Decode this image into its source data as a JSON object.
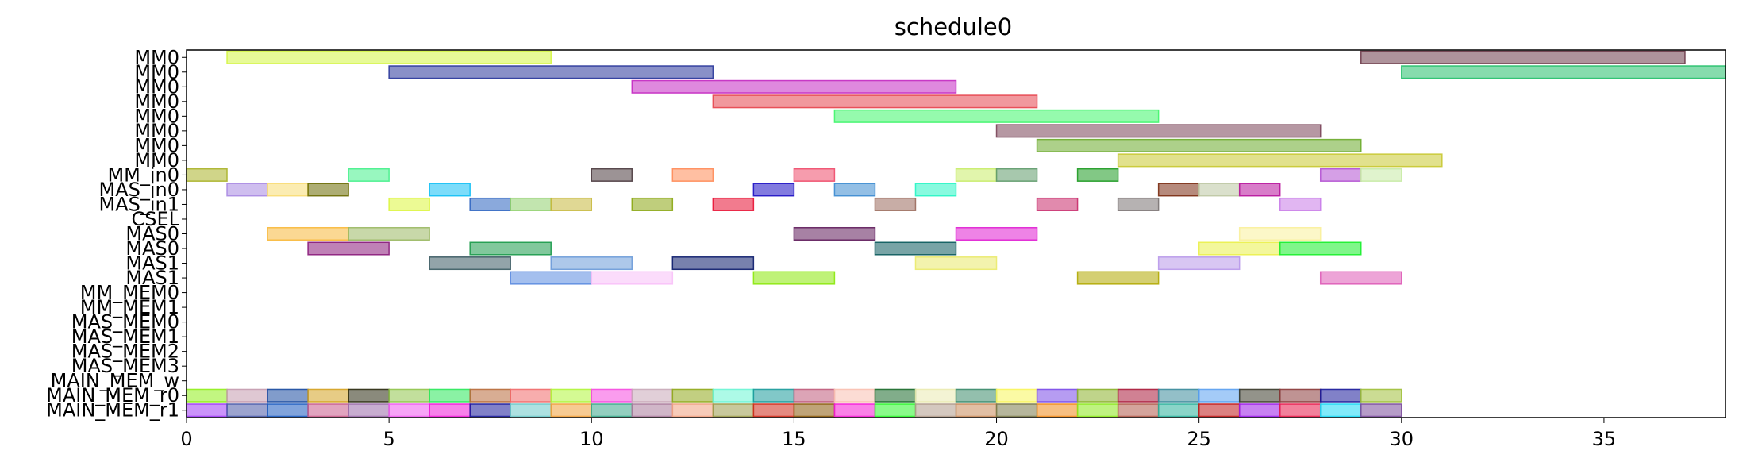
{
  "chart_data": {
    "type": "gantt",
    "title": "schedule0",
    "xlim": [
      0,
      38
    ],
    "x_ticks": [
      "0",
      "5",
      "10",
      "15",
      "20",
      "25",
      "30",
      "35"
    ],
    "x_tick_values": [
      0,
      5,
      10,
      15,
      20,
      25,
      30,
      35
    ],
    "rows": [
      "MM0",
      "MM0",
      "MM0",
      "MM0",
      "MM0",
      "MM0",
      "MM0",
      "MM0",
      "MM_in0",
      "MAS_in0",
      "MAS_in1",
      "CSEL",
      "MAS0",
      "MAS0",
      "MAS1",
      "MAS1",
      "MM_MEM0",
      "MM_MEM1",
      "MAS_MEM0",
      "MAS_MEM1",
      "MAS_MEM2",
      "MAS_MEM3",
      "MAIN_MEM_w",
      "MAIN_MEM_r0",
      "MAIN_MEM_r1"
    ],
    "tasks": [
      {
        "row": 0,
        "start": 1,
        "end": 9,
        "color": "#d4f542"
      },
      {
        "row": 0,
        "start": 29,
        "end": 37,
        "color": "#6b3a48"
      },
      {
        "row": 1,
        "start": 5,
        "end": 13,
        "color": "#28359a"
      },
      {
        "row": 1,
        "start": 30,
        "end": 38,
        "color": "#22c06a"
      },
      {
        "row": 2,
        "start": 11,
        "end": 19,
        "color": "#c428c2"
      },
      {
        "row": 3,
        "start": 13,
        "end": 21,
        "color": "#e6444d"
      },
      {
        "row": 4,
        "start": 16,
        "end": 24,
        "color": "#3ef56a"
      },
      {
        "row": 5,
        "start": 20,
        "end": 28,
        "color": "#7a4458"
      },
      {
        "row": 6,
        "start": 21,
        "end": 29,
        "color": "#6aaa2a"
      },
      {
        "row": 7,
        "start": 23,
        "end": 31,
        "color": "#c8c830"
      },
      {
        "row": 8,
        "start": 0,
        "end": 1,
        "color": "#aab228"
      },
      {
        "row": 8,
        "start": 4,
        "end": 5,
        "color": "#44f08a"
      },
      {
        "row": 8,
        "start": 10,
        "end": 11,
        "color": "#4a3a3e"
      },
      {
        "row": 8,
        "start": 12,
        "end": 13,
        "color": "#ff8a56"
      },
      {
        "row": 8,
        "start": 15,
        "end": 16,
        "color": "#ee4a6a"
      },
      {
        "row": 8,
        "start": 19,
        "end": 20,
        "color": "#c8ec68"
      },
      {
        "row": 8,
        "start": 20,
        "end": 21,
        "color": "#5e9a6a"
      },
      {
        "row": 8,
        "start": 22,
        "end": 23,
        "color": "#1c9a20"
      },
      {
        "row": 8,
        "start": 28,
        "end": 29,
        "color": "#b250d2"
      },
      {
        "row": 8,
        "start": 29,
        "end": 30,
        "color": "#c6eaa4"
      },
      {
        "row": 9,
        "start": 1,
        "end": 2,
        "color": "#a888e2"
      },
      {
        "row": 9,
        "start": 2,
        "end": 3,
        "color": "#f8dc72"
      },
      {
        "row": 9,
        "start": 3,
        "end": 4,
        "color": "#6a6a00"
      },
      {
        "row": 9,
        "start": 6,
        "end": 7,
        "color": "#10bff5"
      },
      {
        "row": 9,
        "start": 14,
        "end": 15,
        "color": "#1c0ec4"
      },
      {
        "row": 9,
        "start": 16,
        "end": 17,
        "color": "#3a8ad0"
      },
      {
        "row": 9,
        "start": 18,
        "end": 19,
        "color": "#26f5c4"
      },
      {
        "row": 9,
        "start": 24,
        "end": 25,
        "color": "#7a2a10"
      },
      {
        "row": 9,
        "start": 25,
        "end": 26,
        "color": "#bcc6a2"
      },
      {
        "row": 9,
        "start": 26,
        "end": 27,
        "color": "#b8129c"
      },
      {
        "row": 10,
        "start": 5,
        "end": 6,
        "color": "#dcf53c"
      },
      {
        "row": 10,
        "start": 7,
        "end": 8,
        "color": "#2a62c0"
      },
      {
        "row": 10,
        "start": 8,
        "end": 9,
        "color": "#90d06e"
      },
      {
        "row": 10,
        "start": 9,
        "end": 10,
        "color": "#c6b83c"
      },
      {
        "row": 10,
        "start": 11,
        "end": 12,
        "color": "#8aa610"
      },
      {
        "row": 10,
        "start": 13,
        "end": 14,
        "color": "#e80e32"
      },
      {
        "row": 10,
        "start": 17,
        "end": 18,
        "color": "#9a6a5c"
      },
      {
        "row": 10,
        "start": 21,
        "end": 22,
        "color": "#c82a6a"
      },
      {
        "row": 10,
        "start": 23,
        "end": 24,
        "color": "#7a7272"
      },
      {
        "row": 10,
        "start": 27,
        "end": 28,
        "color": "#c87ae8"
      },
      {
        "row": 12,
        "start": 2,
        "end": 4,
        "color": "#f8b83a"
      },
      {
        "row": 12,
        "start": 4,
        "end": 6,
        "color": "#9ab862"
      },
      {
        "row": 12,
        "start": 15,
        "end": 17,
        "color": "#5e1a5a"
      },
      {
        "row": 12,
        "start": 19,
        "end": 21,
        "color": "#e01ed2"
      },
      {
        "row": 12,
        "start": 26,
        "end": 28,
        "color": "#faf09a"
      },
      {
        "row": 13,
        "start": 3,
        "end": 5,
        "color": "#8a1a7a"
      },
      {
        "row": 13,
        "start": 7,
        "end": 9,
        "color": "#1a9a4a"
      },
      {
        "row": 13,
        "start": 17,
        "end": 19,
        "color": "#0a5a5c"
      },
      {
        "row": 13,
        "start": 25,
        "end": 27,
        "color": "#eaf04a"
      },
      {
        "row": 13,
        "start": 27,
        "end": 29,
        "color": "#16ee2a"
      },
      {
        "row": 14,
        "start": 6,
        "end": 8,
        "color": "#3a5a62"
      },
      {
        "row": 14,
        "start": 9,
        "end": 11,
        "color": "#6a9ad8"
      },
      {
        "row": 14,
        "start": 12,
        "end": 14,
        "color": "#0a1a6a"
      },
      {
        "row": 14,
        "start": 18,
        "end": 20,
        "color": "#eaea6a"
      },
      {
        "row": 14,
        "start": 24,
        "end": 26,
        "color": "#b898ea"
      },
      {
        "row": 15,
        "start": 8,
        "end": 10,
        "color": "#5a8ae0"
      },
      {
        "row": 15,
        "start": 10,
        "end": 12,
        "color": "#f8c0f8"
      },
      {
        "row": 15,
        "start": 14,
        "end": 16,
        "color": "#8ae80a"
      },
      {
        "row": 15,
        "start": 22,
        "end": 24,
        "color": "#b0a800"
      },
      {
        "row": 15,
        "start": 28,
        "end": 30,
        "color": "#de5ab6"
      },
      {
        "row": 23,
        "start": 0,
        "end": 1,
        "color": "#90ee1a"
      },
      {
        "row": 23,
        "start": 1,
        "end": 2,
        "color": "#c49aae"
      },
      {
        "row": 23,
        "start": 2,
        "end": 3,
        "color": "#1a4aa0"
      },
      {
        "row": 23,
        "start": 3,
        "end": 4,
        "color": "#d4a220"
      },
      {
        "row": 23,
        "start": 4,
        "end": 5,
        "color": "#2a2a10"
      },
      {
        "row": 23,
        "start": 5,
        "end": 6,
        "color": "#90c44a"
      },
      {
        "row": 23,
        "start": 6,
        "end": 7,
        "color": "#2ae85a"
      },
      {
        "row": 23,
        "start": 7,
        "end": 8,
        "color": "#b86a3a"
      },
      {
        "row": 23,
        "start": 8,
        "end": 9,
        "color": "#f06a6a"
      },
      {
        "row": 23,
        "start": 9,
        "end": 10,
        "color": "#b0f53a"
      },
      {
        "row": 23,
        "start": 10,
        "end": 11,
        "color": "#f54ae0"
      },
      {
        "row": 23,
        "start": 11,
        "end": 12,
        "color": "#c8a8b8"
      },
      {
        "row": 23,
        "start": 12,
        "end": 13,
        "color": "#90a81a"
      },
      {
        "row": 23,
        "start": 13,
        "end": 14,
        "color": "#6af5d4"
      },
      {
        "row": 23,
        "start": 14,
        "end": 15,
        "color": "#1a9a9a"
      },
      {
        "row": 23,
        "start": 15,
        "end": 16,
        "color": "#c05a7a"
      },
      {
        "row": 23,
        "start": 16,
        "end": 17,
        "color": "#fac0b0"
      },
      {
        "row": 23,
        "start": 17,
        "end": 18,
        "color": "#1a6a2a"
      },
      {
        "row": 23,
        "start": 18,
        "end": 19,
        "color": "#eaeab0"
      },
      {
        "row": 23,
        "start": 19,
        "end": 20,
        "color": "#3a8a6a"
      },
      {
        "row": 23,
        "start": 20,
        "end": 21,
        "color": "#f8f55a"
      },
      {
        "row": 23,
        "start": 21,
        "end": 22,
        "color": "#7a4ae8"
      },
      {
        "row": 23,
        "start": 22,
        "end": 23,
        "color": "#8ab02a"
      },
      {
        "row": 23,
        "start": 23,
        "end": 24,
        "color": "#aa1a3a"
      },
      {
        "row": 23,
        "start": 24,
        "end": 25,
        "color": "#3a8a9a"
      },
      {
        "row": 23,
        "start": 25,
        "end": 26,
        "color": "#5aa0f0"
      },
      {
        "row": 23,
        "start": 26,
        "end": 27,
        "color": "#3a3a2a"
      },
      {
        "row": 23,
        "start": 27,
        "end": 28,
        "color": "#8a3a3a"
      },
      {
        "row": 23,
        "start": 28,
        "end": 29,
        "color": "#1a1a9a"
      },
      {
        "row": 23,
        "start": 29,
        "end": 30,
        "color": "#a0c03a"
      },
      {
        "row": 24,
        "start": 0,
        "end": 1,
        "color": "#a03af5"
      },
      {
        "row": 24,
        "start": 1,
        "end": 2,
        "color": "#4a5aa8"
      },
      {
        "row": 24,
        "start": 2,
        "end": 3,
        "color": "#1a5ac0"
      },
      {
        "row": 24,
        "start": 3,
        "end": 4,
        "color": "#c85a8a"
      },
      {
        "row": 24,
        "start": 4,
        "end": 5,
        "color": "#9a6aaa"
      },
      {
        "row": 24,
        "start": 5,
        "end": 6,
        "color": "#f05af0"
      },
      {
        "row": 24,
        "start": 6,
        "end": 7,
        "color": "#f01ad8"
      },
      {
        "row": 24,
        "start": 7,
        "end": 8,
        "color": "#1a1a9a"
      },
      {
        "row": 24,
        "start": 8,
        "end": 9,
        "color": "#6ac8c8"
      },
      {
        "row": 24,
        "start": 9,
        "end": 10,
        "color": "#f0a03a"
      },
      {
        "row": 24,
        "start": 10,
        "end": 11,
        "color": "#3aa88a"
      },
      {
        "row": 24,
        "start": 11,
        "end": 12,
        "color": "#aa7a9a"
      },
      {
        "row": 24,
        "start": 12,
        "end": 13,
        "color": "#f0a080"
      },
      {
        "row": 24,
        "start": 13,
        "end": 14,
        "color": "#9a9a4a"
      },
      {
        "row": 24,
        "start": 14,
        "end": 15,
        "color": "#d02a1a"
      },
      {
        "row": 24,
        "start": 15,
        "end": 16,
        "color": "#8a5a0a"
      },
      {
        "row": 24,
        "start": 16,
        "end": 17,
        "color": "#f51ad4"
      },
      {
        "row": 24,
        "start": 17,
        "end": 18,
        "color": "#2af52a"
      },
      {
        "row": 24,
        "start": 18,
        "end": 19,
        "color": "#b09a8a"
      },
      {
        "row": 24,
        "start": 19,
        "end": 20,
        "color": "#c88a5a"
      },
      {
        "row": 24,
        "start": 20,
        "end": 21,
        "color": "#7a7a4a"
      },
      {
        "row": 24,
        "start": 21,
        "end": 22,
        "color": "#f08a1a"
      },
      {
        "row": 24,
        "start": 22,
        "end": 23,
        "color": "#8ae81a"
      },
      {
        "row": 24,
        "start": 23,
        "end": 24,
        "color": "#b05a4a"
      },
      {
        "row": 24,
        "start": 24,
        "end": 25,
        "color": "#2ab09a"
      },
      {
        "row": 24,
        "start": 25,
        "end": 26,
        "color": "#c01a1a"
      },
      {
        "row": 24,
        "start": 26,
        "end": 27,
        "color": "#9a1ae8"
      },
      {
        "row": 24,
        "start": 27,
        "end": 28,
        "color": "#e81a4a"
      },
      {
        "row": 24,
        "start": 28,
        "end": 29,
        "color": "#1ad8f5"
      },
      {
        "row": 24,
        "start": 29,
        "end": 30,
        "color": "#7a4a9a"
      }
    ]
  }
}
